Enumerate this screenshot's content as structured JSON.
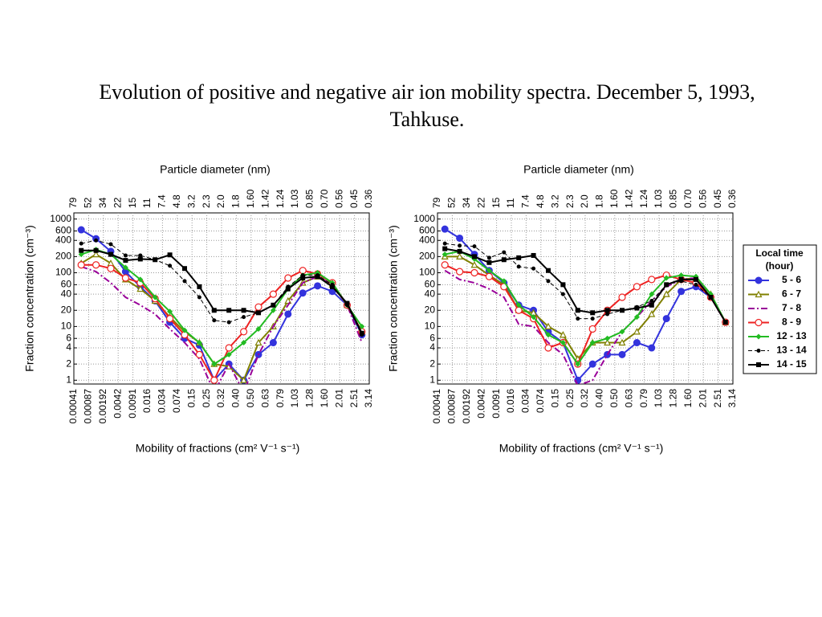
{
  "title": "Evolution of positive and negative air ion mobility spectra. December 5, 1993, Tahkuse.",
  "chart_data": [
    {
      "type": "line",
      "x2_label": "Particle diameter (nm)",
      "ylabel": "Fraction concentration (cm⁻³)",
      "xlabel": "Mobility of fractions (cm² V⁻¹ s⁻¹)",
      "x_tick_labels": [
        "0.00041",
        "0.00087",
        "0.00192",
        "0.0042",
        "0.0091",
        "0.016",
        "0.034",
        "0.074",
        "0.15",
        "0.25",
        "0.32",
        "0.40",
        "0.50",
        "0.63",
        "0.79",
        "1.03",
        "1.28",
        "1.60",
        "2.01",
        "2.51",
        "3.14"
      ],
      "x2_tick_labels": [
        "79",
        "52",
        "34",
        "22",
        "15",
        "11",
        "7.4",
        "4.8",
        "3.2",
        "2.3",
        "2.0",
        "1.8",
        "1.60",
        "1.42",
        "1.24",
        "1.03",
        "0.85",
        "0.70",
        "0.56",
        "0.45",
        "0.36"
      ],
      "log_y": true,
      "ylim": [
        0.85,
        1300
      ],
      "yticks": [
        1,
        2,
        4,
        6,
        10,
        20,
        40,
        60,
        100,
        200,
        400,
        600,
        1000
      ],
      "grid": true,
      "series": [
        {
          "name": "5 - 6",
          "color": "#3333dd",
          "marker": "circle-filled",
          "dash": "solid",
          "values": [
            630,
            430,
            250,
            105,
            55,
            30,
            12,
            6,
            4.5,
            1,
            2,
            1,
            3,
            5,
            17,
            42,
            57,
            45,
            25,
            7
          ]
        },
        {
          "name": "6 - 7",
          "color": "#808000",
          "marker": "triangle-open",
          "dash": "solid",
          "values": [
            150,
            220,
            150,
            75,
            50,
            30,
            15,
            8,
            5,
            2,
            1.8,
            1,
            5,
            10,
            30,
            65,
            85,
            60,
            25,
            8
          ]
        },
        {
          "name": "7 - 8",
          "color": "#990099",
          "marker": "none",
          "dash": "dashdot",
          "values": [
            130,
            105,
            65,
            35,
            25,
            17,
            9,
            5,
            2.5,
            0.6,
            2,
            0.6,
            3,
            10,
            25,
            65,
            85,
            60,
            25,
            5
          ]
        },
        {
          "name": "8 - 9",
          "color": "#ee2222",
          "marker": "circle-open",
          "dash": "solid",
          "values": [
            140,
            140,
            120,
            80,
            65,
            33,
            14,
            7,
            3,
            1,
            4,
            8,
            23,
            40,
            80,
            110,
            95,
            65,
            25,
            8
          ]
        },
        {
          "name": "12 - 13",
          "color": "#22bb22",
          "marker": "diamond-filled",
          "dash": "solid",
          "values": [
            220,
            270,
            220,
            125,
            75,
            35,
            19,
            8.5,
            5,
            2,
            3,
            5,
            9,
            20,
            50,
            90,
            100,
            65,
            25,
            10
          ]
        },
        {
          "name": "13 - 14",
          "color": "#000000",
          "marker": "dot",
          "dash": "dashed",
          "values": [
            350,
            400,
            340,
            210,
            210,
            175,
            135,
            70,
            35,
            13,
            12,
            15,
            18,
            25,
            55,
            90,
            90,
            60,
            25,
            7
          ]
        },
        {
          "name": "14 - 15",
          "color": "#000000",
          "marker": "square-filled",
          "dash": "solid",
          "values": [
            260,
            260,
            220,
            170,
            180,
            175,
            215,
            120,
            55,
            20,
            20,
            20,
            18,
            25,
            50,
            80,
            85,
            55,
            27,
            7.5
          ]
        }
      ]
    },
    {
      "type": "line",
      "x2_label": "Particle diameter (nm)",
      "ylabel": "Fraction concentration (cm⁻³)",
      "xlabel": "Mobility of fractions (cm² V⁻¹ s⁻¹)",
      "x_tick_labels": [
        "0.00041",
        "0.00087",
        "0.00192",
        "0.0042",
        "0.0091",
        "0.016",
        "0.034",
        "0.074",
        "0.15",
        "0.25",
        "0.32",
        "0.40",
        "0.50",
        "0.63",
        "0.79",
        "1.03",
        "1.28",
        "1.60",
        "2.01",
        "2.51",
        "3.14"
      ],
      "x2_tick_labels": [
        "79",
        "52",
        "34",
        "22",
        "15",
        "11",
        "7.4",
        "4.8",
        "3.2",
        "2.3",
        "2.0",
        "1.8",
        "1.60",
        "1.42",
        "1.24",
        "1.03",
        "0.85",
        "0.70",
        "0.56",
        "0.45",
        "0.36"
      ],
      "log_y": true,
      "ylim": [
        0.85,
        1300
      ],
      "yticks": [
        1,
        2,
        4,
        6,
        10,
        20,
        40,
        60,
        100,
        200,
        400,
        600,
        1000
      ],
      "grid": true,
      "legend_title": [
        "Local time",
        "(hour)"
      ],
      "series": [
        {
          "name": "5 - 6",
          "color": "#3333dd",
          "marker": "circle-filled",
          "dash": "solid",
          "values": [
            650,
            440,
            220,
            110,
            65,
            25,
            20,
            8,
            5,
            1,
            2,
            3,
            3,
            5,
            4,
            14,
            45,
            55,
            35,
            12
          ]
        },
        {
          "name": "6 - 7",
          "color": "#808000",
          "marker": "triangle-open",
          "dash": "solid",
          "values": [
            200,
            200,
            140,
            90,
            60,
            20,
            18,
            10,
            7,
            2.5,
            5,
            5,
            5,
            8,
            17,
            40,
            75,
            80,
            40,
            12
          ]
        },
        {
          "name": "7 - 8",
          "color": "#990099",
          "marker": "none",
          "dash": "dashdot",
          "values": [
            110,
            75,
            65,
            50,
            35,
            11,
            10,
            5,
            3,
            0.8,
            1,
            3,
            8,
            15,
            30,
            55,
            75,
            80,
            40,
            12
          ]
        },
        {
          "name": "8 - 9",
          "color": "#ee2222",
          "marker": "circle-open",
          "dash": "solid",
          "values": [
            140,
            105,
            100,
            85,
            55,
            20,
            14,
            4,
            5,
            2,
            9,
            20,
            35,
            55,
            75,
            90,
            75,
            65,
            35,
            12
          ]
        },
        {
          "name": "12 - 13",
          "color": "#22bb22",
          "marker": "diamond-filled",
          "dash": "solid",
          "values": [
            220,
            250,
            180,
            110,
            70,
            25,
            15,
            7,
            5,
            2,
            5,
            6,
            8,
            15,
            40,
            80,
            90,
            85,
            40,
            12
          ]
        },
        {
          "name": "13 - 14",
          "color": "#000000",
          "marker": "dot",
          "dash": "dashed",
          "values": [
            350,
            320,
            310,
            190,
            240,
            130,
            120,
            70,
            40,
            14,
            14,
            17,
            20,
            23,
            30,
            60,
            70,
            60,
            35,
            12
          ]
        },
        {
          "name": "14 - 15",
          "color": "#000000",
          "marker": "square-filled",
          "dash": "solid",
          "values": [
            280,
            250,
            200,
            155,
            175,
            190,
            210,
            110,
            60,
            20,
            18,
            20,
            20,
            22,
            25,
            60,
            75,
            75,
            35,
            12
          ]
        }
      ]
    }
  ]
}
